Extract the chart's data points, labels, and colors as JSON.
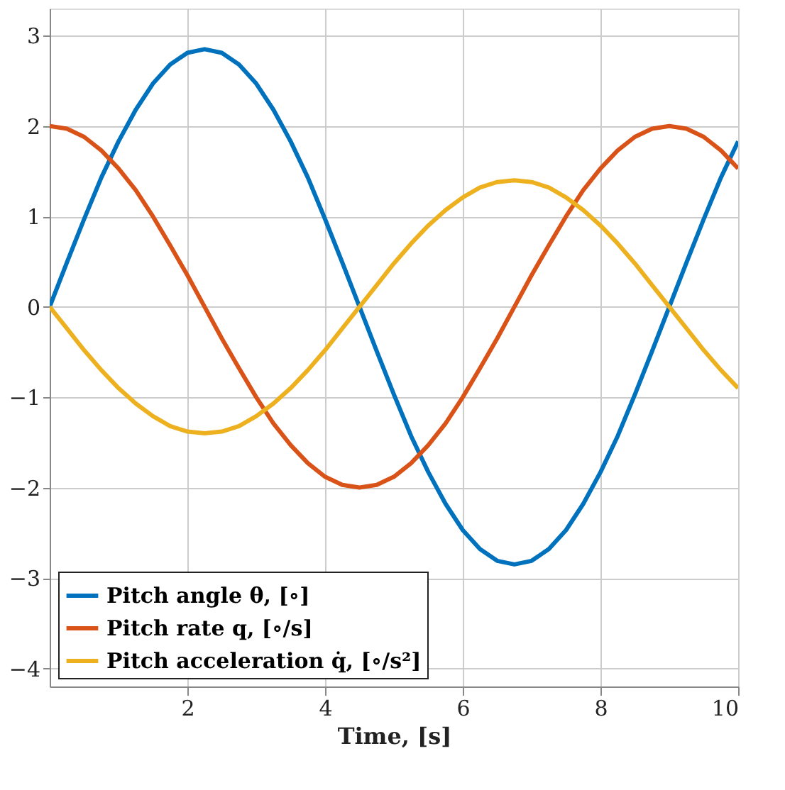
{
  "chart_data": {
    "type": "line",
    "xlabel": "Time, [s]",
    "x": [
      0,
      0.25,
      0.5,
      0.75,
      1,
      1.25,
      1.5,
      1.75,
      2,
      2.25,
      2.5,
      2.75,
      3,
      3.25,
      3.5,
      3.75,
      4,
      4.25,
      4.5,
      4.75,
      5,
      5.25,
      5.5,
      5.75,
      6,
      6.25,
      6.5,
      6.75,
      7,
      7.25,
      7.5,
      7.75,
      8,
      8.25,
      8.5,
      8.75,
      9,
      9.25,
      9.5,
      9.75,
      10
    ],
    "series": [
      {
        "name": "Pitch angle θ, [∘]",
        "color": "#0072bd",
        "values": [
          0,
          0.49,
          0.97,
          1.43,
          1.83,
          2.18,
          2.47,
          2.68,
          2.81,
          2.85,
          2.81,
          2.68,
          2.47,
          2.18,
          1.83,
          1.43,
          0.97,
          0.49,
          0,
          -0.49,
          -0.97,
          -1.43,
          -1.83,
          -2.18,
          -2.47,
          -2.68,
          -2.81,
          -2.85,
          -2.81,
          -2.68,
          -2.47,
          -2.18,
          -1.83,
          -1.43,
          -0.97,
          -0.49,
          0,
          0.49,
          0.97,
          1.43,
          1.83
        ]
      },
      {
        "name": "Pitch rate q, [∘/s]",
        "color": "#d95319",
        "values": [
          2,
          1.97,
          1.88,
          1.73,
          1.53,
          1.29,
          1,
          0.68,
          0.35,
          0,
          -0.35,
          -0.68,
          -1,
          -1.29,
          -1.53,
          -1.73,
          -1.88,
          -1.97,
          -2,
          -1.97,
          -1.88,
          -1.73,
          -1.53,
          -1.29,
          -1,
          -0.68,
          -0.35,
          0,
          0.35,
          0.68,
          1,
          1.29,
          1.53,
          1.73,
          1.88,
          1.97,
          2,
          1.97,
          1.88,
          1.73,
          1.53
        ]
      },
      {
        "name": "Pitch acceleration q̇, [∘/s²]",
        "color": "#edb120",
        "values": [
          0,
          -0.24,
          -0.48,
          -0.7,
          -0.9,
          -1.07,
          -1.21,
          -1.32,
          -1.38,
          -1.4,
          -1.38,
          -1.32,
          -1.21,
          -1.07,
          -0.9,
          -0.7,
          -0.48,
          -0.24,
          0,
          0.24,
          0.48,
          0.7,
          0.9,
          1.07,
          1.21,
          1.32,
          1.38,
          1.4,
          1.38,
          1.32,
          1.21,
          1.07,
          0.9,
          0.7,
          0.48,
          0.24,
          0,
          -0.24,
          -0.48,
          -0.7,
          -0.9
        ]
      }
    ],
    "xlim": [
      0,
      10
    ],
    "xticks": [
      2,
      4,
      6,
      8,
      10
    ],
    "ylim": [
      -4.2,
      3.3
    ],
    "yticks": [
      -4,
      -3,
      -2,
      -1,
      0,
      1,
      2,
      3
    ],
    "grid": true,
    "legend": "bottom left",
    "marker": "none",
    "line_style": "solid"
  }
}
